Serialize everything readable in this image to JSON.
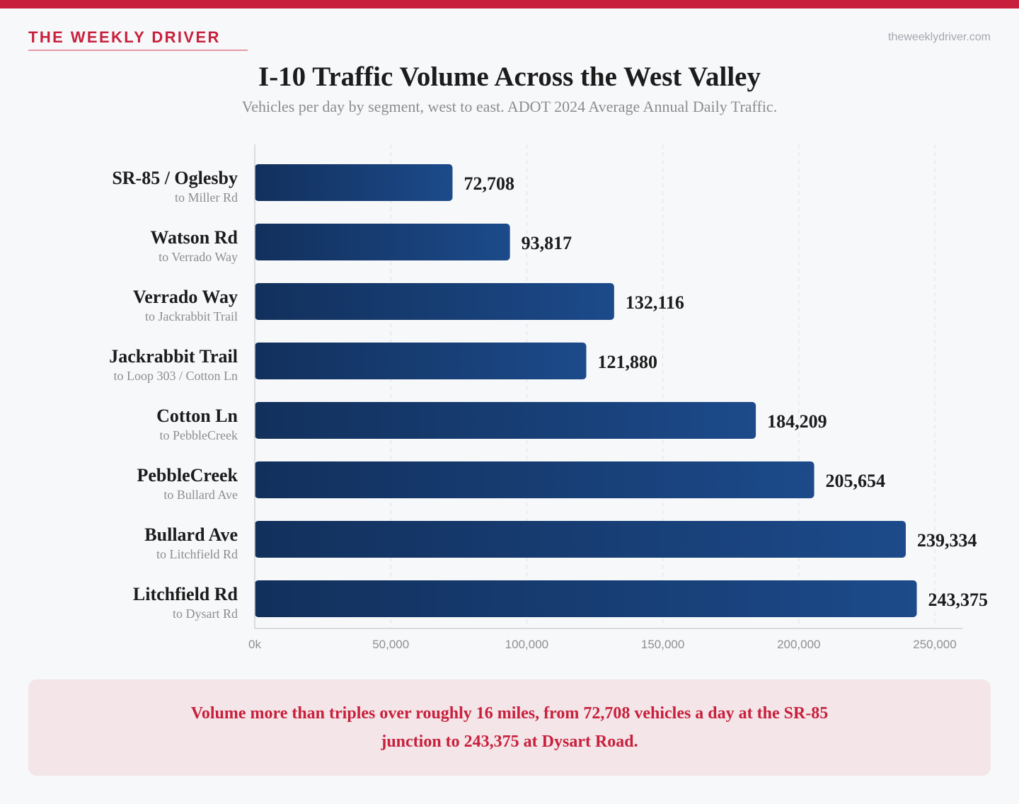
{
  "header": {
    "brand": "THE WEEKLY DRIVER",
    "site": "theweeklydriver.com"
  },
  "colors": {
    "accent": "#c8203c",
    "bar_start": "#12305c",
    "bar_end": "#1c4a8a",
    "callout_bg": "#f3e5e8"
  },
  "chart_data": {
    "type": "bar",
    "orientation": "horizontal",
    "title": "I-10 Traffic Volume Across the West Valley",
    "subtitle": "Vehicles per day by segment, west to east. ADOT 2024 Average Annual Daily Traffic.",
    "categories": [
      "SR-85 / Oglesby",
      "Watson Rd",
      "Verrado Way",
      "Jackrabbit Trail",
      "Cotton Ln",
      "PebbleCreek",
      "Bullard Ave",
      "Litchfield Rd"
    ],
    "sublabels": [
      "to Miller Rd",
      "to Verrado Way",
      "to Jackrabbit Trail",
      "to Loop 303 / Cotton Ln",
      "to PebbleCreek",
      "to Bullard Ave",
      "to Litchfield Rd",
      "to Dysart Rd"
    ],
    "values": [
      72708,
      93817,
      132116,
      121880,
      184209,
      205654,
      239334,
      243375
    ],
    "value_labels": [
      "72,708",
      "93,817",
      "132,116",
      "121,880",
      "184,209",
      "205,654",
      "239,334",
      "243,375"
    ],
    "xlim": [
      0,
      260000
    ],
    "xticks": [
      0,
      50000,
      100000,
      150000,
      200000,
      250000
    ],
    "xtick_labels": [
      "0k",
      "50,000",
      "100,000",
      "150,000",
      "200,000",
      "250,000"
    ],
    "grid": "vertical dashed",
    "legend": "none"
  },
  "callout": {
    "text": "Volume more than triples over roughly 16 miles, from 72,708 vehicles a day at the SR-85 junction to 243,375 at Dysart Road."
  }
}
